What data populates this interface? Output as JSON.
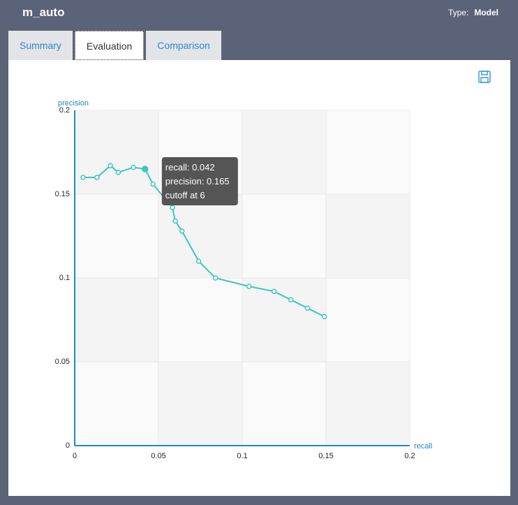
{
  "header": {
    "title": "m_auto",
    "type_label": "Type:",
    "type_value": "Model"
  },
  "tabs": [
    "Summary",
    "Evaluation",
    "Comparison"
  ],
  "active_tab": 1,
  "chart_data": {
    "type": "line",
    "x_label": "recall",
    "y_label": "precision",
    "x": [
      0.005,
      0.0133,
      0.0213,
      0.026,
      0.035,
      0.042,
      0.0467,
      0.0583,
      0.06,
      0.064,
      0.074,
      0.084,
      0.104,
      0.119,
      0.129,
      0.139,
      0.149
    ],
    "values": [
      0.16,
      0.16,
      0.167,
      0.163,
      0.166,
      0.165,
      0.156,
      0.142,
      0.134,
      0.128,
      0.11,
      0.1,
      0.095,
      0.092,
      0.087,
      0.082,
      0.077
    ],
    "color": "#3cc6c0",
    "xlim": [
      0,
      0.2
    ],
    "xticks": [
      0,
      0.05,
      0.1,
      0.15,
      0.2
    ],
    "ylim": [
      0,
      0.2
    ],
    "yticks": [
      0,
      0.05,
      0.1,
      0.15,
      0.2
    ],
    "grid": true,
    "tooltip": {
      "point": 5,
      "lines": [
        "recall: 0.042",
        "precision: 0.165",
        "cutoff at 6"
      ]
    }
  }
}
